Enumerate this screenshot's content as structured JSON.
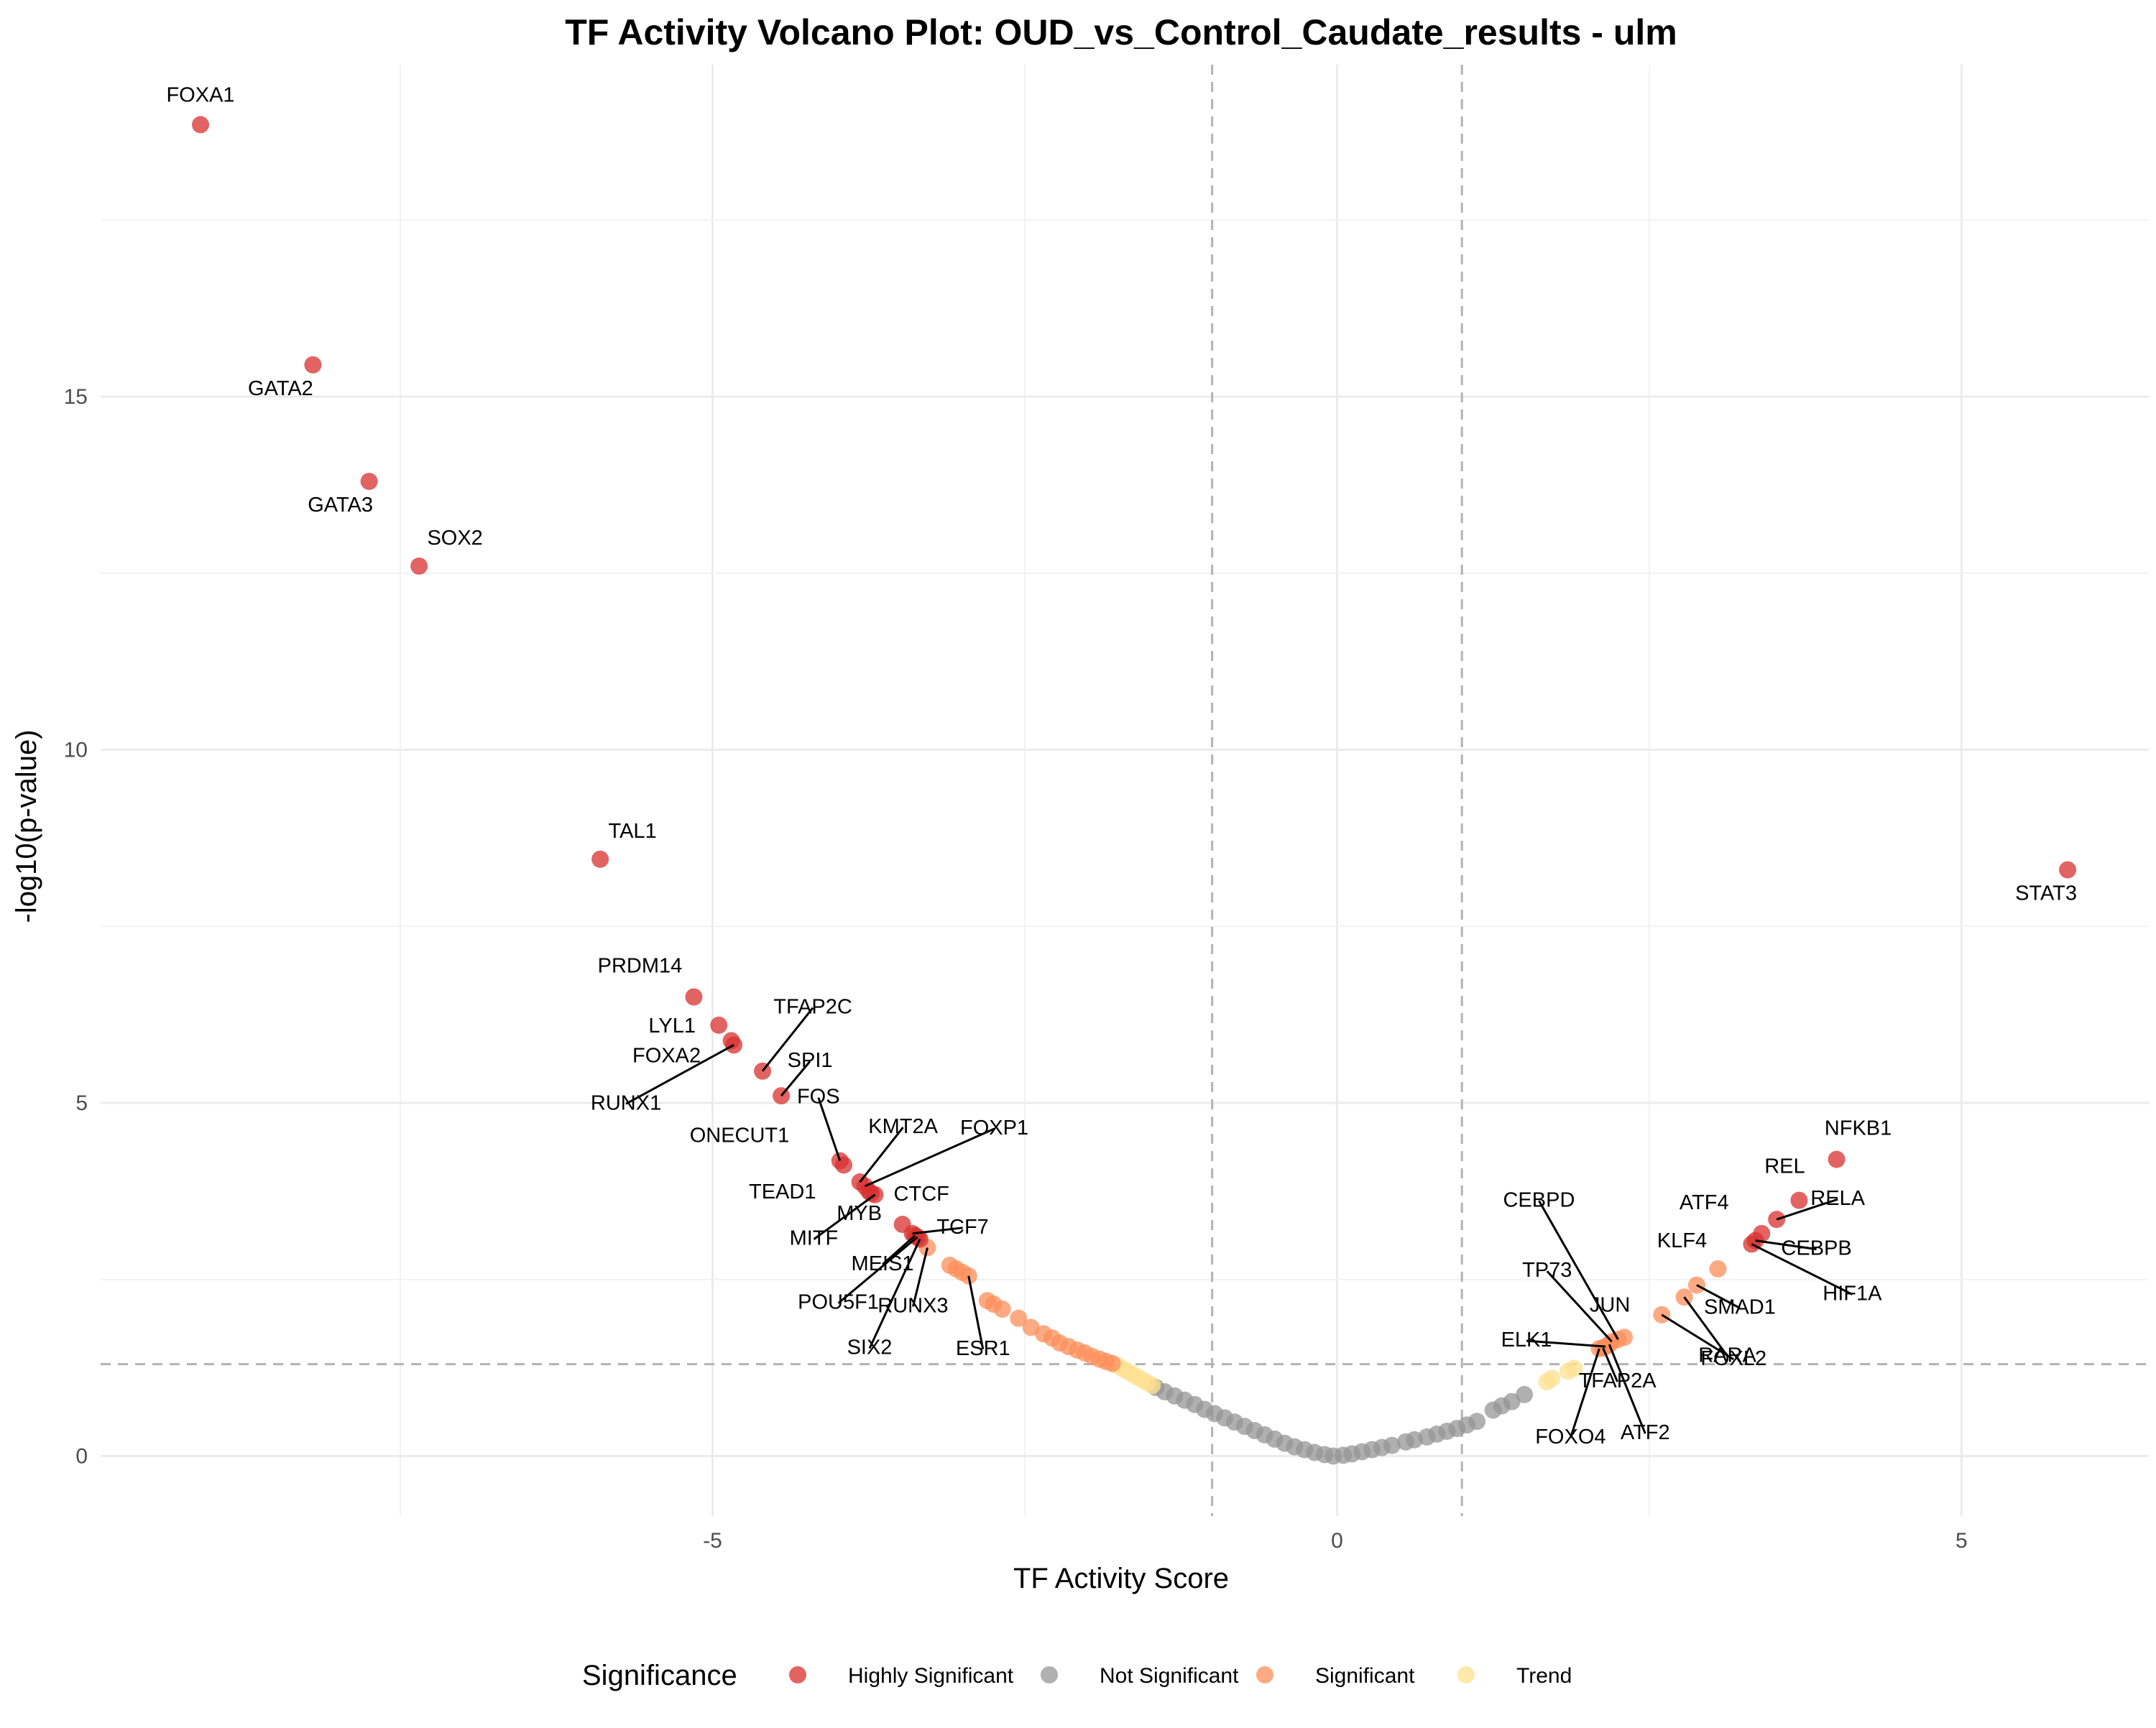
{
  "chart_data": {
    "type": "scatter",
    "title": "TF Activity Volcano Plot: OUD_vs_Control_Caudate_results - ulm",
    "xlabel": "TF Activity Score",
    "ylabel": "-log10(p-value)",
    "xlim": [
      -9.9,
      6.5
    ],
    "ylim": [
      -0.85,
      19.7
    ],
    "x_ticks": [
      -5,
      0,
      5
    ],
    "y_ticks": [
      0,
      5,
      10,
      15
    ],
    "grid": true,
    "thresholds": {
      "x": [
        -1,
        1
      ],
      "y": 1.3
    },
    "legend": {
      "title": "Significance",
      "position": "bottom",
      "entries": [
        {
          "name": "Highly Significant",
          "color": "#d7302f"
        },
        {
          "name": "Not Significant",
          "color": "#969696"
        },
        {
          "name": "Significant",
          "color": "#fc8d59"
        },
        {
          "name": "Trend",
          "color": "#fee090"
        }
      ]
    },
    "series": [
      {
        "name": "Highly Significant",
        "color": "#d7302f",
        "points": [
          {
            "label": "FOXA1",
            "x": -9.1,
            "y": 18.85
          },
          {
            "label": "GATA2",
            "x": -8.2,
            "y": 15.45
          },
          {
            "label": "GATA3",
            "x": -7.75,
            "y": 13.8
          },
          {
            "label": "SOX2",
            "x": -7.35,
            "y": 12.6
          },
          {
            "label": "TAL1",
            "x": -5.9,
            "y": 8.45
          },
          {
            "label": "STAT3",
            "x": 5.85,
            "y": 8.3
          },
          {
            "label": "PRDM14",
            "x": -5.15,
            "y": 6.5
          },
          {
            "label": "LYL1",
            "x": -4.95,
            "y": 6.1
          },
          {
            "label": "FOXA2",
            "x": -4.85,
            "y": 5.88
          },
          {
            "label": "RUNX1",
            "x": -4.83,
            "y": 5.82
          },
          {
            "label": "TFAP2C",
            "x": -4.6,
            "y": 5.45
          },
          {
            "label": "SPI1",
            "x": -4.45,
            "y": 5.1
          },
          {
            "label": "FOS",
            "x": -3.98,
            "y": 4.18
          },
          {
            "label": "ONECUT1",
            "x": -3.95,
            "y": 4.12
          },
          {
            "label": "KMT2A",
            "x": -3.82,
            "y": 3.88
          },
          {
            "label": "FOXP1",
            "x": -3.78,
            "y": 3.82
          },
          {
            "label": "TEAD1",
            "x": -3.75,
            "y": 3.75
          },
          {
            "label": "CTCF",
            "x": -3.73,
            "y": 3.72
          },
          {
            "label": "MITF",
            "x": -3.7,
            "y": 3.7
          },
          {
            "label": "MYB",
            "x": -3.48,
            "y": 3.28
          },
          {
            "label": "TCF7",
            "x": -3.4,
            "y": 3.15
          },
          {
            "label": "MEIS1",
            "x": -3.38,
            "y": 3.12
          },
          {
            "label": "POU5F1",
            "x": -3.36,
            "y": 3.1
          },
          {
            "label": "SIX2",
            "x": -3.34,
            "y": 3.07
          },
          {
            "label": "NFKB1",
            "x": 4.0,
            "y": 4.2
          },
          {
            "label": "REL",
            "x": 3.7,
            "y": 3.62
          },
          {
            "label": "RELA",
            "x": 3.52,
            "y": 3.35
          },
          {
            "label": "ATF4",
            "x": 3.4,
            "y": 3.15
          },
          {
            "label": "CEBPB",
            "x": 3.35,
            "y": 3.05
          },
          {
            "label": "HIF1A",
            "x": 3.32,
            "y": 3.0
          }
        ]
      },
      {
        "name": "Significant",
        "color": "#fc8d59",
        "points": [
          {
            "label": "RUNX3",
            "x": -3.28,
            "y": 2.95
          },
          {
            "label": "ESR1",
            "x": -2.95,
            "y": 2.55
          },
          {
            "label": "",
            "x": -3.1,
            "y": 2.7
          },
          {
            "label": "",
            "x": -3.05,
            "y": 2.65
          },
          {
            "label": "",
            "x": -3.0,
            "y": 2.6
          },
          {
            "label": "",
            "x": -2.8,
            "y": 2.2
          },
          {
            "label": "",
            "x": -2.75,
            "y": 2.15
          },
          {
            "label": "",
            "x": -2.68,
            "y": 2.08
          },
          {
            "label": "",
            "x": -2.55,
            "y": 1.95
          },
          {
            "label": "",
            "x": -2.45,
            "y": 1.82
          },
          {
            "label": "",
            "x": -2.35,
            "y": 1.73
          },
          {
            "label": "",
            "x": -2.28,
            "y": 1.67
          },
          {
            "label": "",
            "x": -2.22,
            "y": 1.6
          },
          {
            "label": "",
            "x": -2.15,
            "y": 1.55
          },
          {
            "label": "",
            "x": -2.08,
            "y": 1.5
          },
          {
            "label": "",
            "x": -2.02,
            "y": 1.46
          },
          {
            "label": "",
            "x": -1.96,
            "y": 1.41
          },
          {
            "label": "",
            "x": -1.9,
            "y": 1.37
          },
          {
            "label": "",
            "x": -1.85,
            "y": 1.34
          },
          {
            "label": "",
            "x": -1.8,
            "y": 1.31
          },
          {
            "label": "KLF4",
            "x": 3.05,
            "y": 2.65
          },
          {
            "label": "SMAD1",
            "x": 2.88,
            "y": 2.42
          },
          {
            "label": "RARA",
            "x": 2.78,
            "y": 2.25
          },
          {
            "label": "FOXL2",
            "x": 2.6,
            "y": 2.0
          },
          {
            "label": "JUN",
            "x": 2.3,
            "y": 1.68
          },
          {
            "label": "CEBPD",
            "x": 2.25,
            "y": 1.65
          },
          {
            "label": "TP73",
            "x": 2.2,
            "y": 1.62
          },
          {
            "label": "ELK1",
            "x": 2.15,
            "y": 1.55
          },
          {
            "label": "TFAP2A",
            "x": 2.13,
            "y": 1.53
          },
          {
            "label": "ATF2",
            "x": 2.18,
            "y": 1.58
          },
          {
            "label": "FOXO4",
            "x": 2.1,
            "y": 1.52
          }
        ]
      },
      {
        "name": "Trend",
        "color": "#fee090",
        "points": [
          {
            "label": "",
            "x": -1.76,
            "y": 1.28
          },
          {
            "label": "",
            "x": -1.72,
            "y": 1.24
          },
          {
            "label": "",
            "x": -1.68,
            "y": 1.2
          },
          {
            "label": "",
            "x": -1.64,
            "y": 1.16
          },
          {
            "label": "",
            "x": -1.6,
            "y": 1.12
          },
          {
            "label": "",
            "x": -1.56,
            "y": 1.08
          },
          {
            "label": "",
            "x": -1.52,
            "y": 1.04
          },
          {
            "label": "",
            "x": -1.48,
            "y": 1.0
          },
          {
            "label": "",
            "x": 1.68,
            "y": 1.05
          },
          {
            "label": "",
            "x": 1.72,
            "y": 1.1
          },
          {
            "label": "",
            "x": 1.85,
            "y": 1.2
          },
          {
            "label": "",
            "x": 1.9,
            "y": 1.24
          }
        ]
      },
      {
        "name": "Not Significant",
        "color": "#969696",
        "points": [
          {
            "label": "",
            "x": -1.45,
            "y": 0.97
          },
          {
            "label": "",
            "x": -1.38,
            "y": 0.91
          },
          {
            "label": "",
            "x": -1.3,
            "y": 0.85
          },
          {
            "label": "",
            "x": -1.22,
            "y": 0.79
          },
          {
            "label": "",
            "x": -1.14,
            "y": 0.73
          },
          {
            "label": "",
            "x": -1.06,
            "y": 0.66
          },
          {
            "label": "",
            "x": -0.98,
            "y": 0.6
          },
          {
            "label": "",
            "x": -0.9,
            "y": 0.54
          },
          {
            "label": "",
            "x": -0.82,
            "y": 0.48
          },
          {
            "label": "",
            "x": -0.74,
            "y": 0.42
          },
          {
            "label": "",
            "x": -0.66,
            "y": 0.36
          },
          {
            "label": "",
            "x": -0.58,
            "y": 0.3
          },
          {
            "label": "",
            "x": -0.5,
            "y": 0.24
          },
          {
            "label": "",
            "x": -0.42,
            "y": 0.18
          },
          {
            "label": "",
            "x": -0.34,
            "y": 0.13
          },
          {
            "label": "",
            "x": -0.26,
            "y": 0.09
          },
          {
            "label": "",
            "x": -0.18,
            "y": 0.05
          },
          {
            "label": "",
            "x": -0.1,
            "y": 0.02
          },
          {
            "label": "",
            "x": -0.03,
            "y": 0.0
          },
          {
            "label": "",
            "x": 0.05,
            "y": 0.01
          },
          {
            "label": "",
            "x": 0.12,
            "y": 0.03
          },
          {
            "label": "",
            "x": 0.2,
            "y": 0.06
          },
          {
            "label": "",
            "x": 0.28,
            "y": 0.09
          },
          {
            "label": "",
            "x": 0.36,
            "y": 0.12
          },
          {
            "label": "",
            "x": 0.44,
            "y": 0.15
          },
          {
            "label": "",
            "x": 0.55,
            "y": 0.2
          },
          {
            "label": "",
            "x": 0.62,
            "y": 0.23
          },
          {
            "label": "",
            "x": 0.72,
            "y": 0.27
          },
          {
            "label": "",
            "x": 0.8,
            "y": 0.31
          },
          {
            "label": "",
            "x": 0.88,
            "y": 0.35
          },
          {
            "label": "",
            "x": 0.96,
            "y": 0.39
          },
          {
            "label": "",
            "x": 1.04,
            "y": 0.44
          },
          {
            "label": "",
            "x": 1.12,
            "y": 0.49
          },
          {
            "label": "",
            "x": 1.25,
            "y": 0.65
          },
          {
            "label": "",
            "x": 1.32,
            "y": 0.71
          },
          {
            "label": "",
            "x": 1.4,
            "y": 0.77
          },
          {
            "label": "",
            "x": 1.5,
            "y": 0.87
          }
        ]
      }
    ]
  }
}
